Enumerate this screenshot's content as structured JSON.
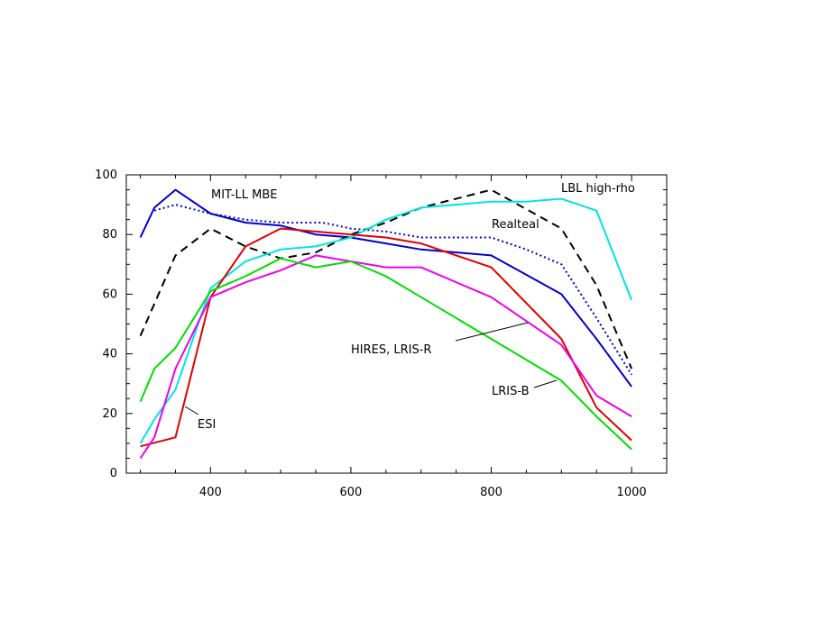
{
  "chart_data": {
    "type": "line",
    "title": "",
    "xlabel": "",
    "ylabel": "",
    "xlim": [
      280,
      1050
    ],
    "ylim": [
      0,
      100
    ],
    "x_ticks": [
      400,
      600,
      800,
      1000
    ],
    "x_tick_labels": [
      "400",
      "600",
      "800",
      "1000"
    ],
    "y_ticks": [
      0,
      20,
      40,
      60,
      80,
      100
    ],
    "y_tick_labels": [
      "0",
      "20",
      "40",
      "60",
      "80",
      "100"
    ],
    "grid": false,
    "legend": "none",
    "series": [
      {
        "id": "mit-ll-mbe",
        "color": "#0000cc",
        "dash": "solid",
        "points": [
          [
            300,
            79
          ],
          [
            320,
            89
          ],
          [
            350,
            95
          ],
          [
            400,
            87
          ],
          [
            450,
            84
          ],
          [
            500,
            83
          ],
          [
            550,
            80
          ],
          [
            600,
            79
          ],
          [
            650,
            77
          ],
          [
            700,
            75
          ],
          [
            800,
            73
          ],
          [
            900,
            60
          ],
          [
            950,
            45
          ],
          [
            1000,
            29
          ]
        ]
      },
      {
        "id": "mit-ll-dotted",
        "color": "#0000cc",
        "dash": "dotted",
        "points": [
          [
            320,
            88
          ],
          [
            350,
            90
          ],
          [
            400,
            87
          ],
          [
            450,
            85
          ],
          [
            500,
            84
          ],
          [
            530,
            84
          ],
          [
            560,
            84
          ],
          [
            600,
            82
          ],
          [
            650,
            81
          ],
          [
            700,
            79
          ],
          [
            750,
            79
          ],
          [
            800,
            79
          ],
          [
            850,
            75
          ],
          [
            900,
            70
          ],
          [
            950,
            52
          ],
          [
            1000,
            33
          ]
        ]
      },
      {
        "id": "realteal",
        "color": "#000000",
        "dash": "dashed",
        "points": [
          [
            300,
            46
          ],
          [
            350,
            73
          ],
          [
            400,
            82
          ],
          [
            450,
            76
          ],
          [
            500,
            72
          ],
          [
            550,
            74
          ],
          [
            600,
            80
          ],
          [
            650,
            84
          ],
          [
            700,
            89
          ],
          [
            800,
            95
          ],
          [
            900,
            82
          ],
          [
            950,
            63
          ],
          [
            1000,
            35
          ]
        ]
      },
      {
        "id": "lbl-high-rho",
        "color": "#00e5e5",
        "dash": "solid",
        "points": [
          [
            300,
            10
          ],
          [
            320,
            18
          ],
          [
            350,
            28
          ],
          [
            400,
            62
          ],
          [
            450,
            71
          ],
          [
            500,
            75
          ],
          [
            550,
            76
          ],
          [
            600,
            79
          ],
          [
            650,
            85
          ],
          [
            700,
            89
          ],
          [
            800,
            91
          ],
          [
            850,
            91
          ],
          [
            900,
            92
          ],
          [
            950,
            88
          ],
          [
            1000,
            58
          ]
        ]
      },
      {
        "id": "esi",
        "color": "#e00000",
        "dash": "solid",
        "points": [
          [
            300,
            9
          ],
          [
            350,
            12
          ],
          [
            400,
            59
          ],
          [
            450,
            76
          ],
          [
            500,
            82
          ],
          [
            550,
            81
          ],
          [
            600,
            80
          ],
          [
            650,
            79
          ],
          [
            700,
            77
          ],
          [
            800,
            69
          ],
          [
            900,
            45
          ],
          [
            950,
            22
          ],
          [
            1000,
            11
          ]
        ]
      },
      {
        "id": "hires-lris-r",
        "color": "#ee00ee",
        "dash": "solid",
        "points": [
          [
            300,
            5
          ],
          [
            320,
            12
          ],
          [
            350,
            35
          ],
          [
            400,
            59
          ],
          [
            450,
            64
          ],
          [
            500,
            68
          ],
          [
            550,
            73
          ],
          [
            600,
            71
          ],
          [
            650,
            69
          ],
          [
            700,
            69
          ],
          [
            800,
            59
          ],
          [
            900,
            43
          ],
          [
            950,
            26
          ],
          [
            1000,
            19
          ]
        ]
      },
      {
        "id": "lris-b",
        "color": "#00dd00",
        "dash": "solid",
        "points": [
          [
            300,
            24
          ],
          [
            320,
            35
          ],
          [
            350,
            42
          ],
          [
            400,
            61
          ],
          [
            450,
            66
          ],
          [
            500,
            72
          ],
          [
            550,
            69
          ],
          [
            600,
            71
          ],
          [
            650,
            66
          ],
          [
            700,
            59
          ],
          [
            800,
            45
          ],
          [
            900,
            31
          ],
          [
            950,
            19
          ],
          [
            1000,
            8
          ]
        ]
      }
    ],
    "annotations": [
      {
        "id": "label-mit-ll-mbe",
        "text": "MIT-LL MBE"
      },
      {
        "id": "label-lbl-high-rho",
        "text": "LBL high-rho"
      },
      {
        "id": "label-realteal",
        "text": "Realteal"
      },
      {
        "id": "label-hires-lris-r",
        "text": "HIRES, LRIS-R"
      },
      {
        "id": "label-lris-b",
        "text": "LRIS-B"
      },
      {
        "id": "label-esi",
        "text": "ESI"
      }
    ]
  }
}
